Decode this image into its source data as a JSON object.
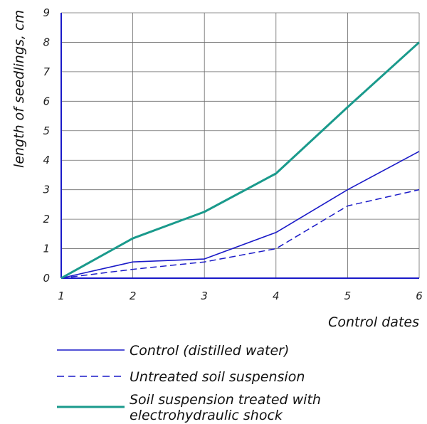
{
  "chart_data": {
    "type": "line",
    "x": [
      1,
      2,
      3,
      4,
      5,
      6
    ],
    "xlabel": "Control dates",
    "ylabel": "length of seedlings, cm",
    "xlim": [
      1,
      6
    ],
    "ylim": [
      0,
      9
    ],
    "xticks": [
      "1",
      "2",
      "3",
      "4",
      "5",
      "6"
    ],
    "yticks": [
      "0",
      "1",
      "2",
      "3",
      "4",
      "5",
      "6",
      "7",
      "8",
      "9"
    ],
    "grid": true,
    "legend_position": "bottom",
    "series": [
      {
        "name": "Control (distilled water)",
        "values": [
          0,
          0.55,
          0.65,
          1.55,
          3.0,
          4.3
        ],
        "color": "#1a1ac8",
        "style": "solid"
      },
      {
        "name": "Untreated soil suspension",
        "values": [
          0,
          0.3,
          0.55,
          1.0,
          2.45,
          3.0
        ],
        "color": "#1a1ac8",
        "style": "dashed"
      },
      {
        "name": "Soil suspension treated with electrohydraulic shock",
        "legend_lines": [
          "Soil suspension treated with",
          "electrohydraulic shock"
        ],
        "values": [
          0,
          1.35,
          2.25,
          3.55,
          5.8,
          8.0
        ],
        "color": "#1a9a8c",
        "style": "solid"
      }
    ]
  }
}
